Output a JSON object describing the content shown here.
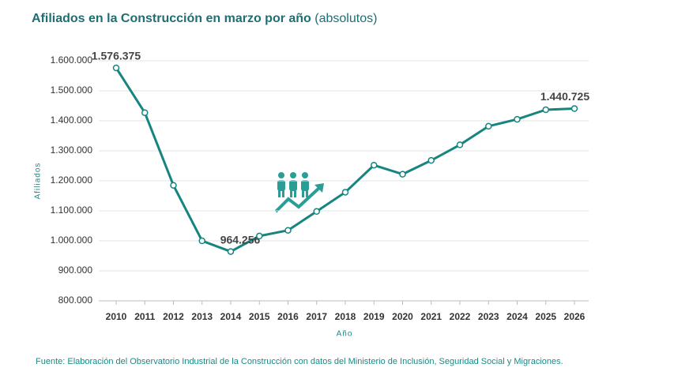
{
  "chart_data": {
    "type": "line",
    "title": "Afiliados en la Construcción en marzo por año",
    "subtitle": "(absolutos)",
    "y_label": "Afiliados",
    "x_label": "Año",
    "source": "Fuente: Elaboración del Observatorio Industrial de la Construcción con datos del Ministerio de Inclusión, Seguridad Social y Migraciones.",
    "categories": [
      "2010",
      "2011",
      "2012",
      "2013",
      "2014",
      "2015",
      "2016",
      "2017",
      "2018",
      "2019",
      "2020",
      "2021",
      "2022",
      "2023",
      "2024",
      "2025",
      "2026"
    ],
    "series": [
      {
        "name": "Afiliados",
        "color": "#16857f",
        "values": [
          1576375,
          1427000,
          1185000,
          1000000,
          964256,
          1016000,
          1035000,
          1098000,
          1162000,
          1252000,
          1222000,
          1268000,
          1320000,
          1382000,
          1405000,
          1437000,
          1440725
        ],
        "value_labels": [
          "1.576.375",
          null,
          null,
          null,
          "964.256",
          null,
          null,
          null,
          null,
          null,
          null,
          null,
          null,
          null,
          null,
          null,
          "1.440.725"
        ]
      }
    ],
    "ylim": [
      800000,
      1600000
    ],
    "yticks": [
      {
        "value": 800000,
        "label": "800.000"
      },
      {
        "value": 900000,
        "label": "900.000"
      },
      {
        "value": 1000000,
        "label": "1.000.000"
      },
      {
        "value": 1100000,
        "label": "1.100.000"
      },
      {
        "value": 1200000,
        "label": "1.200.000"
      },
      {
        "value": 1300000,
        "label": "1.300.000"
      },
      {
        "value": 1400000,
        "label": "1.400.000"
      },
      {
        "value": 1500000,
        "label": "1.500.000"
      },
      {
        "value": 1600000,
        "label": "1.600.000"
      }
    ],
    "grid": true
  }
}
